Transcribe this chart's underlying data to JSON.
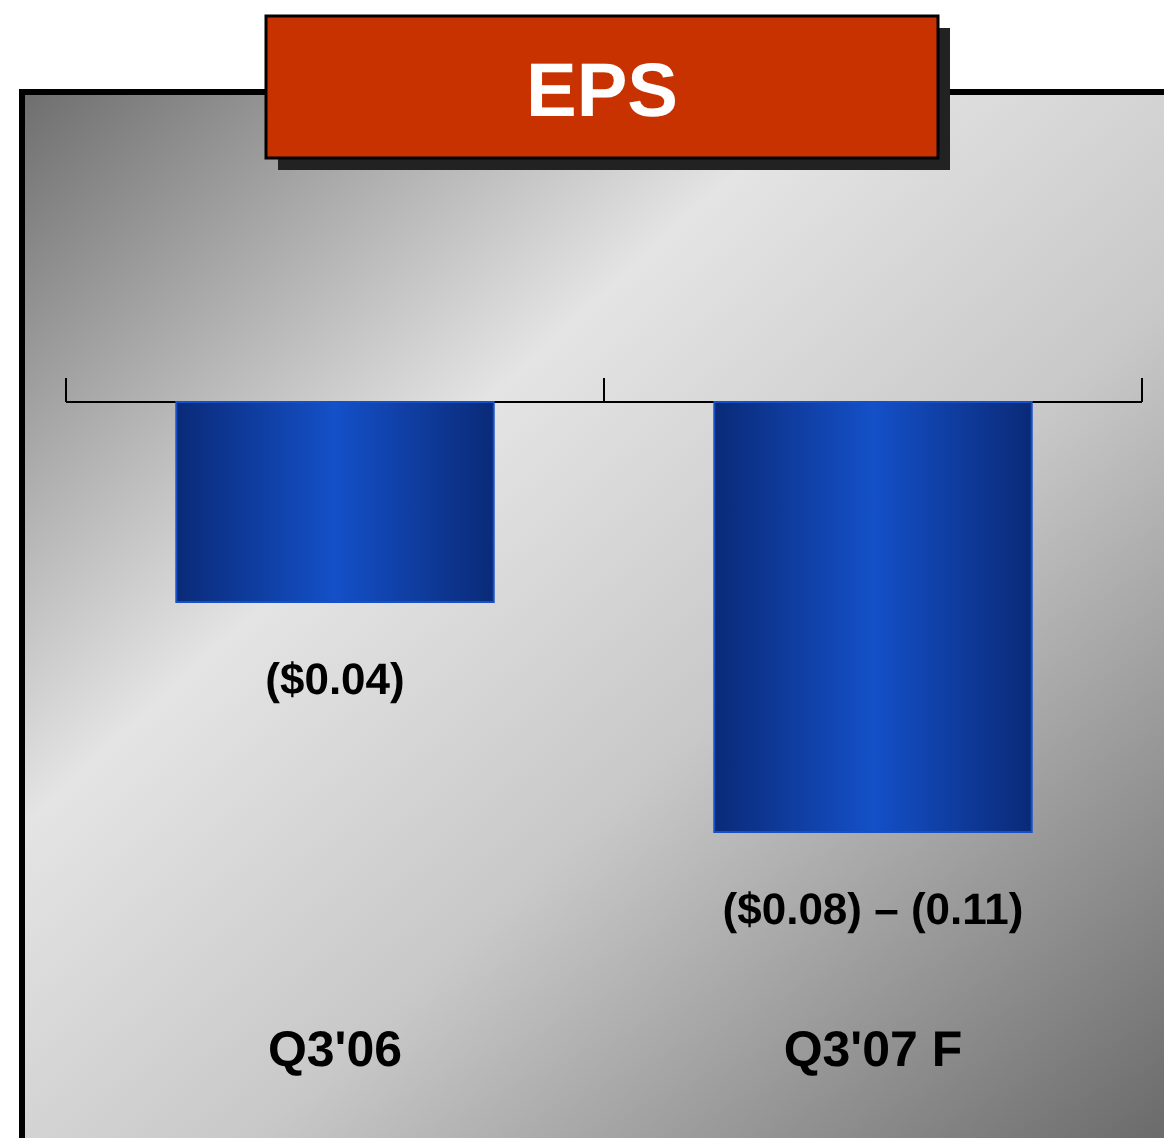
{
  "chart_data": {
    "type": "bar",
    "title": "EPS",
    "categories": [
      "Q3'06",
      "Q3'07 F"
    ],
    "values": [
      -0.04,
      -0.086
    ],
    "value_labels": [
      "($0.04)",
      "($0.08) – (0.11)"
    ],
    "color": "#1450c8"
  }
}
